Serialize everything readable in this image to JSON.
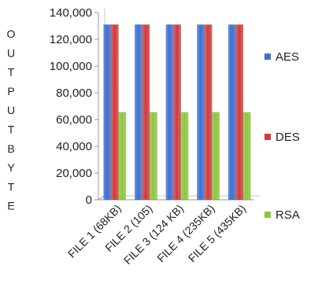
{
  "chart_data": {
    "type": "bar",
    "title": "",
    "xlabel": "",
    "ylabel": "OUTPUTBYTE",
    "categories": [
      "FILE 1 (68KB)",
      "FILE 2 (105)",
      "FILE 3 (124 KB)",
      "FILE 4 (235KB)",
      "FILE 5 (435KB)"
    ],
    "series": [
      {
        "name": "AES",
        "color": "#3e6fd1",
        "values": [
          131000,
          131000,
          131000,
          131000,
          131000
        ]
      },
      {
        "name": "DES",
        "color": "#d13b3b",
        "values": [
          131000,
          131000,
          131000,
          131000,
          131000
        ]
      },
      {
        "name": "RSA",
        "color": "#8dc63f",
        "values": [
          65500,
          65500,
          65500,
          65500,
          65500
        ]
      }
    ],
    "yticks": [
      "0",
      "20,000",
      "40,000",
      "60,000",
      "80,000",
      "100,000",
      "120,000",
      "140,000"
    ],
    "ylim": [
      0,
      140000
    ],
    "grid": false,
    "legend_position": "right"
  }
}
